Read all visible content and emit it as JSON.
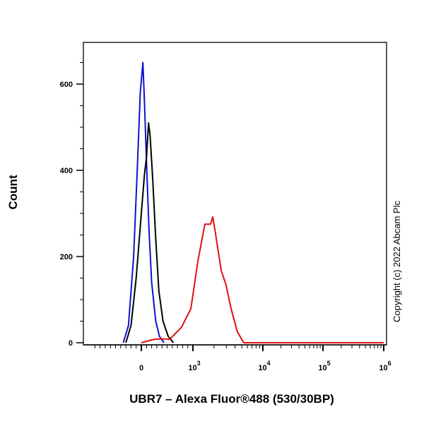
{
  "chart_data": {
    "type": "line",
    "title": "",
    "xlabel": "UBR7 – Alexa Fluor®488 (530/30BP)",
    "ylabel": "Count",
    "x_scale": "biexponential",
    "xlim": [
      -1100,
      1000000
    ],
    "ylim": [
      0,
      700
    ],
    "x_ticks": [
      {
        "value": 0,
        "base": "0",
        "exp": ""
      },
      {
        "value": 1000,
        "base": "10",
        "exp": "3"
      },
      {
        "value": 10000,
        "base": "10",
        "exp": "4"
      },
      {
        "value": 100000,
        "base": "10",
        "exp": "5"
      },
      {
        "value": 1000000,
        "base": "10",
        "exp": "6"
      }
    ],
    "y_ticks": [
      0,
      200,
      400,
      600
    ],
    "grid": false,
    "annotation": "Copyright (c) 2022 Abcam Plc",
    "series": [
      {
        "color": "#1010d0",
        "x": [
          -350,
          -250,
          -150,
          -80,
          -20,
          30,
          60,
          100,
          150,
          200,
          280,
          350,
          440
        ],
        "y": [
          0,
          40,
          200,
          400,
          580,
          650,
          560,
          420,
          260,
          140,
          50,
          15,
          0
        ]
      },
      {
        "color": "#000000",
        "x": [
          -300,
          -200,
          -100,
          0,
          60,
          100,
          140,
          170,
          220,
          280,
          340,
          420,
          520,
          620
        ],
        "y": [
          0,
          40,
          150,
          300,
          390,
          430,
          510,
          480,
          380,
          240,
          120,
          50,
          15,
          0
        ]
      },
      {
        "color": "#e01010",
        "x": [
          0,
          120,
          250,
          400,
          550,
          780,
          960,
          1180,
          1480,
          1790,
          1920,
          2100,
          2540,
          2980,
          3510,
          4330,
          5330,
          1000000
        ],
        "y": [
          0,
          4,
          8,
          9,
          8,
          36,
          79,
          190,
          275,
          275,
          292,
          254,
          167,
          134,
          79,
          25,
          0,
          0
        ]
      }
    ]
  }
}
